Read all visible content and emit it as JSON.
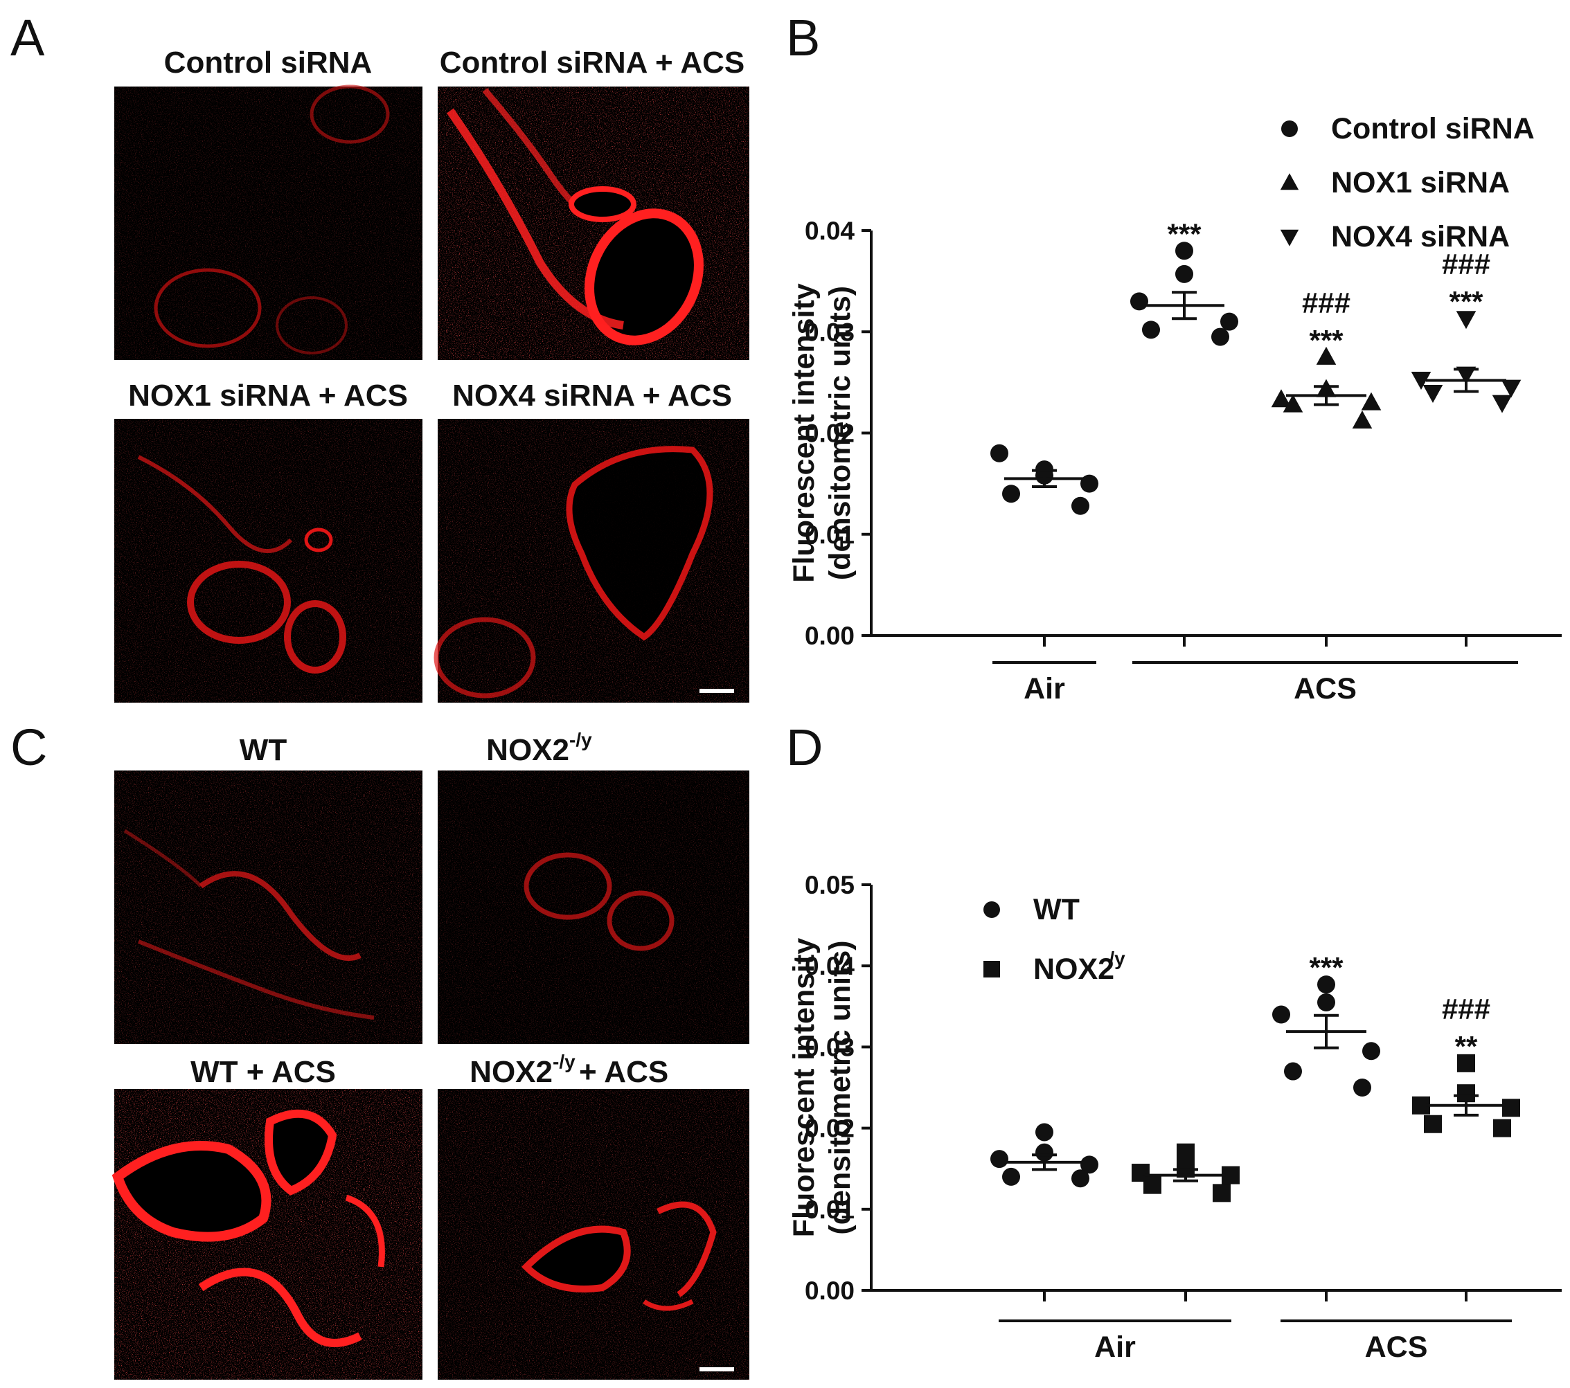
{
  "colors": {
    "stain": "#ff1a1a",
    "background": "#000000",
    "ink": "#111111"
  },
  "panel_A": {
    "letter": "A",
    "images": [
      {
        "title": "Control siRNA",
        "intensity": 0.25
      },
      {
        "title": "Control siRNA + ACS",
        "intensity": 1.0
      },
      {
        "title": "NOX1 siRNA + ACS",
        "intensity": 0.55
      },
      {
        "title": "NOX4 siRNA + ACS",
        "intensity": 0.6
      }
    ]
  },
  "panel_C": {
    "letter": "C",
    "images": [
      {
        "title": "WT",
        "intensity": 0.45
      },
      {
        "title": "NOX2",
        "superscript": "-/y",
        "suffix": "",
        "intensity": 0.4
      },
      {
        "title": "WT + ACS",
        "intensity": 1.0
      },
      {
        "title": "NOX2",
        "superscript": "-/y",
        "suffix": " + ACS",
        "intensity": 0.6
      }
    ]
  },
  "chart_data": [
    {
      "panel": "B",
      "type": "scatter",
      "ylabel_line1": "Fluorescent intensity",
      "ylabel_line2": "(densitometric units)",
      "ylim": [
        0,
        0.04
      ],
      "yticks": [
        "0.00",
        "0.01",
        "0.02",
        "0.03",
        "0.04"
      ],
      "groups": [
        {
          "label": "Air",
          "span": [
            0,
            0
          ]
        },
        {
          "label": "ACS",
          "span": [
            1,
            3
          ]
        }
      ],
      "legend": {
        "position": "top-right",
        "entries": [
          {
            "name": "Control siRNA",
            "marker": "circle"
          },
          {
            "name": "NOX1 siRNA",
            "marker": "triangle-up"
          },
          {
            "name": "NOX4 siRNA",
            "marker": "triangle-down"
          }
        ]
      },
      "columns": [
        {
          "marker": "circle",
          "values": [
            0.0158,
            0.0164,
            0.018,
            0.015,
            0.014,
            0.0128
          ],
          "mean": 0.0155,
          "sem": 0.0008,
          "annotations": []
        },
        {
          "marker": "circle",
          "values": [
            0.038,
            0.0357,
            0.033,
            0.031,
            0.0302,
            0.0295
          ],
          "mean": 0.0326,
          "sem": 0.0013,
          "annotations": [
            "***"
          ]
        },
        {
          "marker": "triangle-up",
          "values": [
            0.0275,
            0.0243,
            0.0233,
            0.023,
            0.0228,
            0.0212
          ],
          "mean": 0.0237,
          "sem": 0.0009,
          "annotations": [
            "***",
            "###"
          ]
        },
        {
          "marker": "triangle-down",
          "values": [
            0.0313,
            0.0258,
            0.0253,
            0.0245,
            0.024,
            0.023
          ],
          "mean": 0.0252,
          "sem": 0.0011,
          "annotations": [
            "***",
            "###"
          ]
        }
      ]
    },
    {
      "panel": "D",
      "type": "scatter",
      "ylabel_line1": "Fluorescent intensity",
      "ylabel_line2": "(densitometric units)",
      "ylim": [
        0,
        0.05
      ],
      "yticks": [
        "0.00",
        "0.01",
        "0.02",
        "0.03",
        "0.04",
        "0.05"
      ],
      "groups": [
        {
          "label": "Air",
          "span": [
            0,
            1
          ]
        },
        {
          "label": "ACS",
          "span": [
            2,
            3
          ]
        }
      ],
      "legend": {
        "position": "top-left",
        "entries": [
          {
            "name": "WT",
            "superscript": "",
            "marker": "circle"
          },
          {
            "name": "NOX2",
            "superscript": "-/y",
            "marker": "square"
          }
        ]
      },
      "columns": [
        {
          "marker": "circle",
          "values": [
            0.0195,
            0.017,
            0.0162,
            0.0155,
            0.014,
            0.0138
          ],
          "mean": 0.0158,
          "sem": 0.0009,
          "annotations": []
        },
        {
          "marker": "square",
          "values": [
            0.017,
            0.015,
            0.0145,
            0.0142,
            0.013,
            0.012
          ],
          "mean": 0.0142,
          "sem": 0.0007,
          "annotations": []
        },
        {
          "marker": "circle",
          "values": [
            0.0377,
            0.0355,
            0.034,
            0.0295,
            0.027,
            0.025
          ],
          "mean": 0.0319,
          "sem": 0.002,
          "annotations": [
            "***"
          ]
        },
        {
          "marker": "square",
          "values": [
            0.028,
            0.0243,
            0.0228,
            0.0225,
            0.0205,
            0.02
          ],
          "mean": 0.0228,
          "sem": 0.0012,
          "annotations": [
            "**",
            "###"
          ]
        }
      ]
    }
  ]
}
